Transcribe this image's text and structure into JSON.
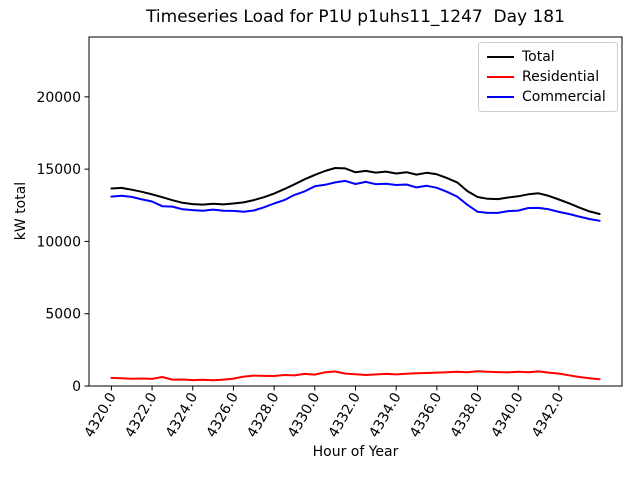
{
  "figure": {
    "title": "Timeseries Load for P1U p1uhs11_1247  Day 181",
    "xlabel": "Hour of Year",
    "ylabel": "kW total"
  },
  "chart_data": {
    "type": "line",
    "title": "Timeseries Load for P1U p1uhs11_1247  Day 181",
    "xlabel": "Hour of Year",
    "ylabel": "kW total",
    "grid": false,
    "legend_position": "upper right",
    "xlim": [
      4318.9,
      4345.1
    ],
    "ylim": [
      0,
      24140
    ],
    "xticks": {
      "values": [
        4320,
        4322,
        4324,
        4326,
        4328,
        4330,
        4332,
        4334,
        4336,
        4338,
        4340,
        4342
      ],
      "labels": [
        "4320.0",
        "4322.0",
        "4324.0",
        "4326.0",
        "4328.0",
        "4330.0",
        "4332.0",
        "4334.0",
        "4336.0",
        "4338.0",
        "4340.0",
        "4342.0"
      ]
    },
    "yticks": {
      "values": [
        0,
        5000,
        10000,
        15000,
        20000
      ],
      "labels": [
        "0",
        "5000",
        "10000",
        "15000",
        "20000"
      ]
    },
    "x": [
      4320,
      4320.5,
      4321,
      4321.5,
      4322,
      4322.5,
      4323,
      4323.5,
      4324,
      4324.5,
      4325,
      4325.5,
      4326,
      4326.5,
      4327,
      4327.5,
      4328,
      4328.5,
      4329,
      4329.5,
      4330,
      4330.5,
      4331,
      4331.5,
      4332,
      4332.5,
      4333,
      4333.5,
      4334,
      4334.5,
      4335,
      4335.5,
      4336,
      4336.5,
      4337,
      4337.5,
      4338,
      4338.5,
      4339,
      4339.5,
      4340,
      4340.5,
      4341,
      4341.5,
      4342,
      4342.5,
      4343,
      4343.5,
      4344
    ],
    "series": [
      {
        "name": "Total",
        "color": "#000000",
        "values": [
          13660,
          13700,
          13580,
          13430,
          13250,
          13060,
          12850,
          12670,
          12580,
          12550,
          12600,
          12560,
          12620,
          12700,
          12860,
          13060,
          13310,
          13620,
          13950,
          14300,
          14600,
          14870,
          15080,
          15050,
          14780,
          14880,
          14760,
          14830,
          14700,
          14790,
          14620,
          14750,
          14640,
          14380,
          14080,
          13480,
          13070,
          12950,
          12930,
          13040,
          13120,
          13260,
          13330,
          13150,
          12900,
          12640,
          12340,
          12080,
          11900
        ]
      },
      {
        "name": "Residential",
        "color": "#ff0000",
        "values": [
          560,
          540,
          500,
          520,
          490,
          620,
          440,
          450,
          410,
          430,
          400,
          440,
          510,
          650,
          720,
          700,
          690,
          760,
          730,
          840,
          790,
          950,
          1000,
          860,
          810,
          760,
          800,
          840,
          800,
          850,
          880,
          900,
          930,
          950,
          980,
          950,
          1020,
          980,
          960,
          940,
          990,
          950,
          1010,
          930,
          860,
          740,
          620,
          530,
          470
        ]
      },
      {
        "name": "Commercial",
        "color": "#0000ff",
        "values": [
          13100,
          13160,
          13080,
          12910,
          12760,
          12440,
          12410,
          12220,
          12170,
          12120,
          12200,
          12120,
          12110,
          12050,
          12140,
          12360,
          12620,
          12860,
          13220,
          13460,
          13810,
          13920,
          14080,
          14190,
          13970,
          14120,
          13960,
          13990,
          13900,
          13940,
          13740,
          13850,
          13710,
          13430,
          13100,
          12530,
          12050,
          11970,
          11970,
          12100,
          12130,
          12310,
          12320,
          12220,
          12040,
          11900,
          11720,
          11550,
          11430
        ]
      }
    ]
  }
}
